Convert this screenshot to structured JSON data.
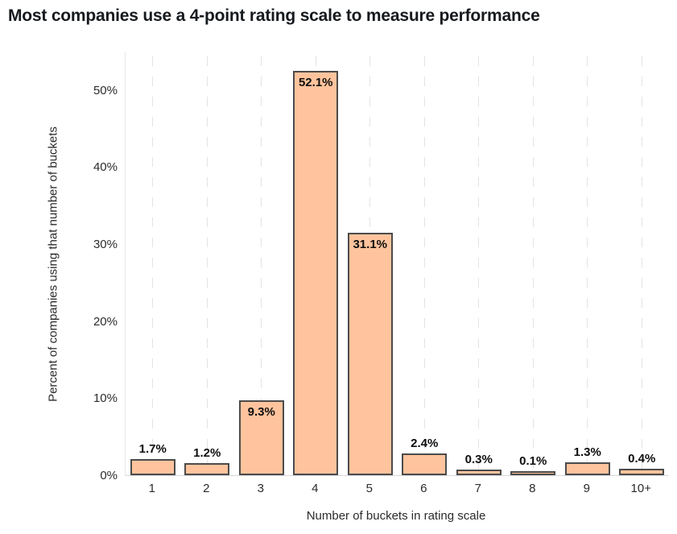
{
  "title": "Most companies use a 4-point rating scale to measure performance",
  "chart_data": {
    "type": "bar",
    "title": "Most companies use a 4-point rating scale to measure performance",
    "categories": [
      "1",
      "2",
      "3",
      "4",
      "5",
      "6",
      "7",
      "8",
      "9",
      "10+"
    ],
    "values": [
      1.7,
      1.2,
      9.3,
      52.1,
      31.1,
      2.4,
      0.3,
      0.1,
      1.3,
      0.4
    ],
    "value_labels": [
      "1.7%",
      "1.2%",
      "9.3%",
      "52.1%",
      "31.1%",
      "2.4%",
      "0.3%",
      "0.1%",
      "1.3%",
      "0.4%"
    ],
    "xlabel": "Number of buckets in rating scale",
    "ylabel": "Percent of companies using that number of buckets",
    "yticks": [
      0,
      10,
      20,
      30,
      40,
      50
    ],
    "ytick_labels": [
      "0%",
      "10%",
      "20%",
      "30%",
      "40%",
      "50%"
    ],
    "ylim": [
      0,
      55
    ],
    "grid": "vertical-dashed",
    "legend": "none",
    "colors": {
      "background": "#ffffff",
      "bar_fill": "#ffc49d",
      "bar_border": "#4b4b4b",
      "gridline": "#e3e3e3",
      "xaxis_line": "#d6d6d6",
      "yaxis_line": "#e6e6e6",
      "title_text": "#16191d",
      "label_text": "#0e0e0e",
      "tick_text": "#2b2b2b"
    }
  }
}
